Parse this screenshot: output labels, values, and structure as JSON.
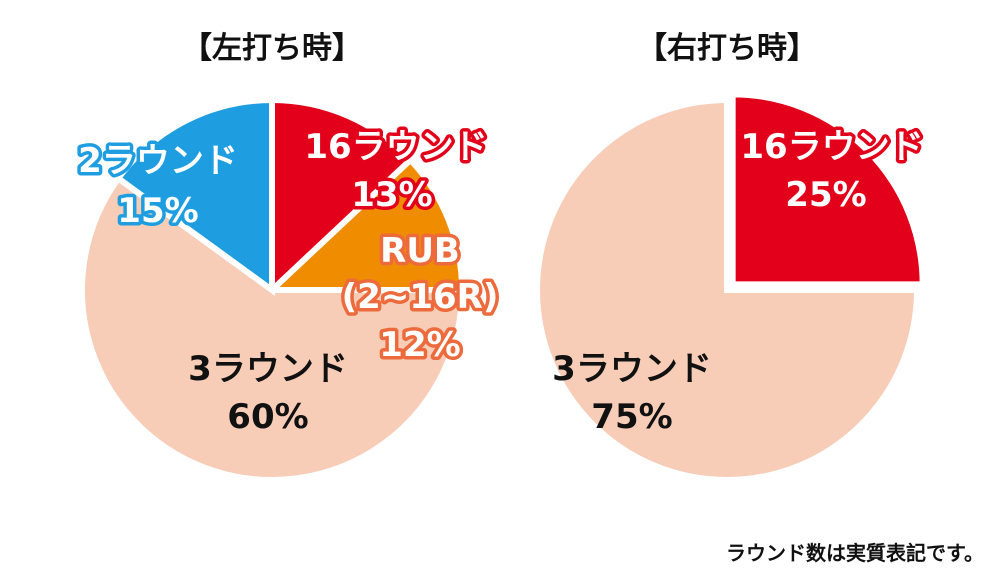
{
  "chart_data": [
    {
      "type": "pie",
      "title": "【左打ち時】",
      "slices": [
        {
          "label": "16ラウンド",
          "value_text": "13%",
          "value": 13,
          "color": "#e2001a",
          "text_style": "white-red"
        },
        {
          "label": "RUB\n(2~16R)",
          "value_text": "12%",
          "value": 12,
          "color": "#f08c00",
          "text_style": "white-orange"
        },
        {
          "label": "3ラウンド",
          "value_text": "60%",
          "value": 60,
          "color": "#f7cdb8",
          "text_style": "dark"
        },
        {
          "label": "2ラウンド",
          "value_text": "15%",
          "value": 15,
          "color": "#1e9ee0",
          "text_style": "white-blue"
        }
      ]
    },
    {
      "type": "pie",
      "title": "【右打ち時】",
      "slices": [
        {
          "label": "16ラウンド",
          "value_text": "25%",
          "value": 25,
          "color": "#e2001a",
          "text_style": "white-red"
        },
        {
          "label": "3ラウンド",
          "value_text": "75%",
          "value": 75,
          "color": "#f7cdb8",
          "text_style": "dark"
        }
      ]
    }
  ],
  "footnote": "ラウンド数は実質表記です。",
  "colors": {
    "background": "#ffffff",
    "slice_border": "#ffffff"
  }
}
